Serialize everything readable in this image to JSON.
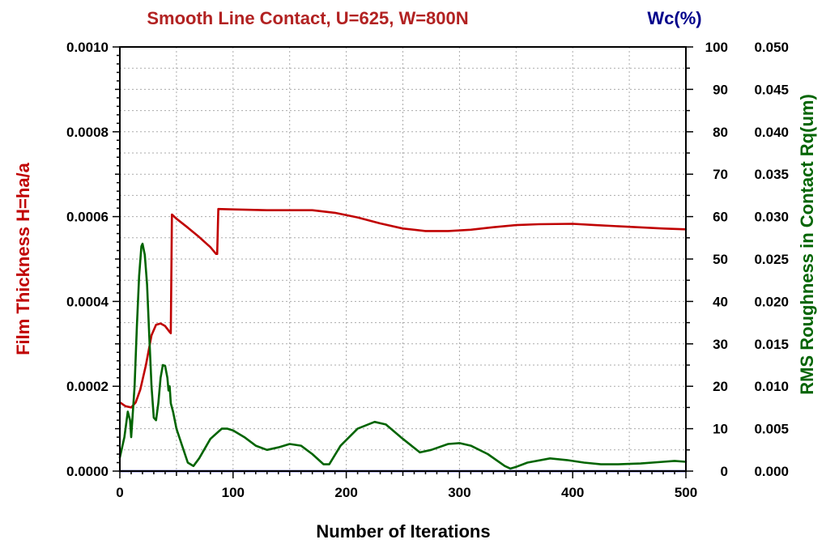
{
  "chart_data": {
    "type": "line",
    "title": "Smooth Line Contact, U=625, W=800N",
    "right_title": "Wc(%)",
    "xlabel": "Number of Iterations",
    "ylabel_left": "Film Thickness H=ha/a",
    "ylabel_right": "RMS Roughness in Contact Rq(um)",
    "xlim": [
      0,
      500
    ],
    "ylim_left": [
      0,
      0.001
    ],
    "ylim_wc": [
      0,
      100
    ],
    "ylim_right": [
      0,
      0.05
    ],
    "x_ticks": [
      "0",
      "100",
      "200",
      "300",
      "400",
      "500"
    ],
    "y_left_ticks": [
      "0.0000",
      "0.0002",
      "0.0004",
      "0.0006",
      "0.0008",
      "0.0010"
    ],
    "y_wc_ticks": [
      "0",
      "10",
      "20",
      "30",
      "40",
      "50",
      "60",
      "70",
      "80",
      "90",
      "100"
    ],
    "y_right_ticks": [
      "0.000",
      "0.005",
      "0.010",
      "0.015",
      "0.020",
      "0.025",
      "0.030",
      "0.035",
      "0.040",
      "0.045",
      "0.050"
    ],
    "grid": true,
    "colors": {
      "film": "#c00000",
      "wc": "#0000c0",
      "rms": "#006400",
      "title": "#b22222",
      "right_title": "#00008b"
    },
    "series": [
      {
        "key": "film",
        "axis": "left",
        "points": [
          [
            0,
            0.000162
          ],
          [
            5,
            0.000153
          ],
          [
            10,
            0.00015
          ],
          [
            14,
            0.000162
          ],
          [
            18,
            0.000192
          ],
          [
            23,
            0.00025
          ],
          [
            28,
            0.00032
          ],
          [
            32,
            0.000345
          ],
          [
            36,
            0.000348
          ],
          [
            40,
            0.000342
          ],
          [
            44,
            0.000328
          ],
          [
            45,
            0.000325
          ],
          [
            46,
            0.000605
          ],
          [
            50,
            0.000595
          ],
          [
            60,
            0.000574
          ],
          [
            70,
            0.000552
          ],
          [
            80,
            0.000528
          ],
          [
            85,
            0.000512
          ],
          [
            86,
            0.000512
          ],
          [
            87,
            0.000618
          ],
          [
            100,
            0.000617
          ],
          [
            130,
            0.000615
          ],
          [
            170,
            0.000615
          ],
          [
            190,
            0.000609
          ],
          [
            210,
            0.000598
          ],
          [
            230,
            0.000584
          ],
          [
            250,
            0.000572
          ],
          [
            270,
            0.000566
          ],
          [
            290,
            0.000566
          ],
          [
            310,
            0.000569
          ],
          [
            330,
            0.000575
          ],
          [
            350,
            0.00058
          ],
          [
            370,
            0.000582
          ],
          [
            400,
            0.000583
          ],
          [
            420,
            0.00058
          ],
          [
            450,
            0.000576
          ],
          [
            480,
            0.000572
          ],
          [
            500,
            0.00057
          ]
        ]
      },
      {
        "key": "wc",
        "axis": "wc",
        "points": [
          [
            0,
            0
          ],
          [
            500,
            0
          ]
        ]
      },
      {
        "key": "rms",
        "axis": "right",
        "points": [
          [
            0,
            0.0016
          ],
          [
            4,
            0.004
          ],
          [
            7,
            0.007
          ],
          [
            9,
            0.006
          ],
          [
            10,
            0.004
          ],
          [
            11,
            0.006
          ],
          [
            13,
            0.01
          ],
          [
            15,
            0.017
          ],
          [
            17,
            0.023
          ],
          [
            19,
            0.0265
          ],
          [
            20,
            0.0268
          ],
          [
            22,
            0.0255
          ],
          [
            24,
            0.022
          ],
          [
            26,
            0.016
          ],
          [
            28,
            0.01
          ],
          [
            30,
            0.0063
          ],
          [
            32,
            0.006
          ],
          [
            34,
            0.008
          ],
          [
            36,
            0.011
          ],
          [
            38,
            0.0125
          ],
          [
            40,
            0.0124
          ],
          [
            42,
            0.011
          ],
          [
            43,
            0.0095
          ],
          [
            44,
            0.01
          ],
          [
            45,
            0.008
          ],
          [
            47,
            0.007
          ],
          [
            50,
            0.005
          ],
          [
            55,
            0.003
          ],
          [
            60,
            0.001
          ],
          [
            65,
            0.0006
          ],
          [
            70,
            0.0015
          ],
          [
            80,
            0.0038
          ],
          [
            90,
            0.005
          ],
          [
            95,
            0.005
          ],
          [
            100,
            0.0048
          ],
          [
            110,
            0.004
          ],
          [
            120,
            0.003
          ],
          [
            130,
            0.0025
          ],
          [
            140,
            0.0028
          ],
          [
            150,
            0.0032
          ],
          [
            160,
            0.003
          ],
          [
            170,
            0.002
          ],
          [
            180,
            0.0008
          ],
          [
            185,
            0.0008
          ],
          [
            195,
            0.003
          ],
          [
            210,
            0.005
          ],
          [
            225,
            0.0058
          ],
          [
            235,
            0.0055
          ],
          [
            250,
            0.0038
          ],
          [
            265,
            0.0022
          ],
          [
            275,
            0.0025
          ],
          [
            290,
            0.0032
          ],
          [
            300,
            0.0033
          ],
          [
            310,
            0.003
          ],
          [
            325,
            0.002
          ],
          [
            340,
            0.0006
          ],
          [
            345,
            0.0003
          ],
          [
            350,
            0.0005
          ],
          [
            360,
            0.001
          ],
          [
            380,
            0.0015
          ],
          [
            395,
            0.0013
          ],
          [
            410,
            0.001
          ],
          [
            425,
            0.0008
          ],
          [
            440,
            0.0008
          ],
          [
            460,
            0.0009
          ],
          [
            480,
            0.0011
          ],
          [
            490,
            0.0012
          ],
          [
            500,
            0.0011
          ]
        ]
      }
    ]
  }
}
